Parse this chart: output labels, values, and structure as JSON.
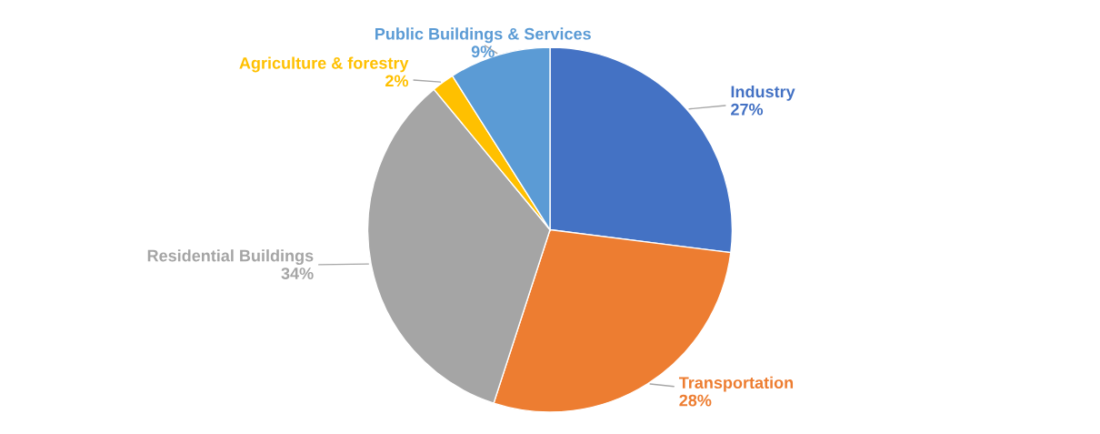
{
  "chart_data": {
    "type": "pie",
    "categories": [
      "Industry",
      "Transportation",
      "Residential Buildings",
      "Agriculture & forestry",
      "Public Buildings & Services"
    ],
    "values": [
      27,
      28,
      34,
      2,
      9
    ],
    "value_labels": [
      "27%",
      "28%",
      "34%",
      "2%",
      "9%"
    ],
    "colors": [
      "#4472c4",
      "#ed7d31",
      "#a5a5a5",
      "#ffc000",
      "#5b9bd5"
    ],
    "legend": false
  }
}
